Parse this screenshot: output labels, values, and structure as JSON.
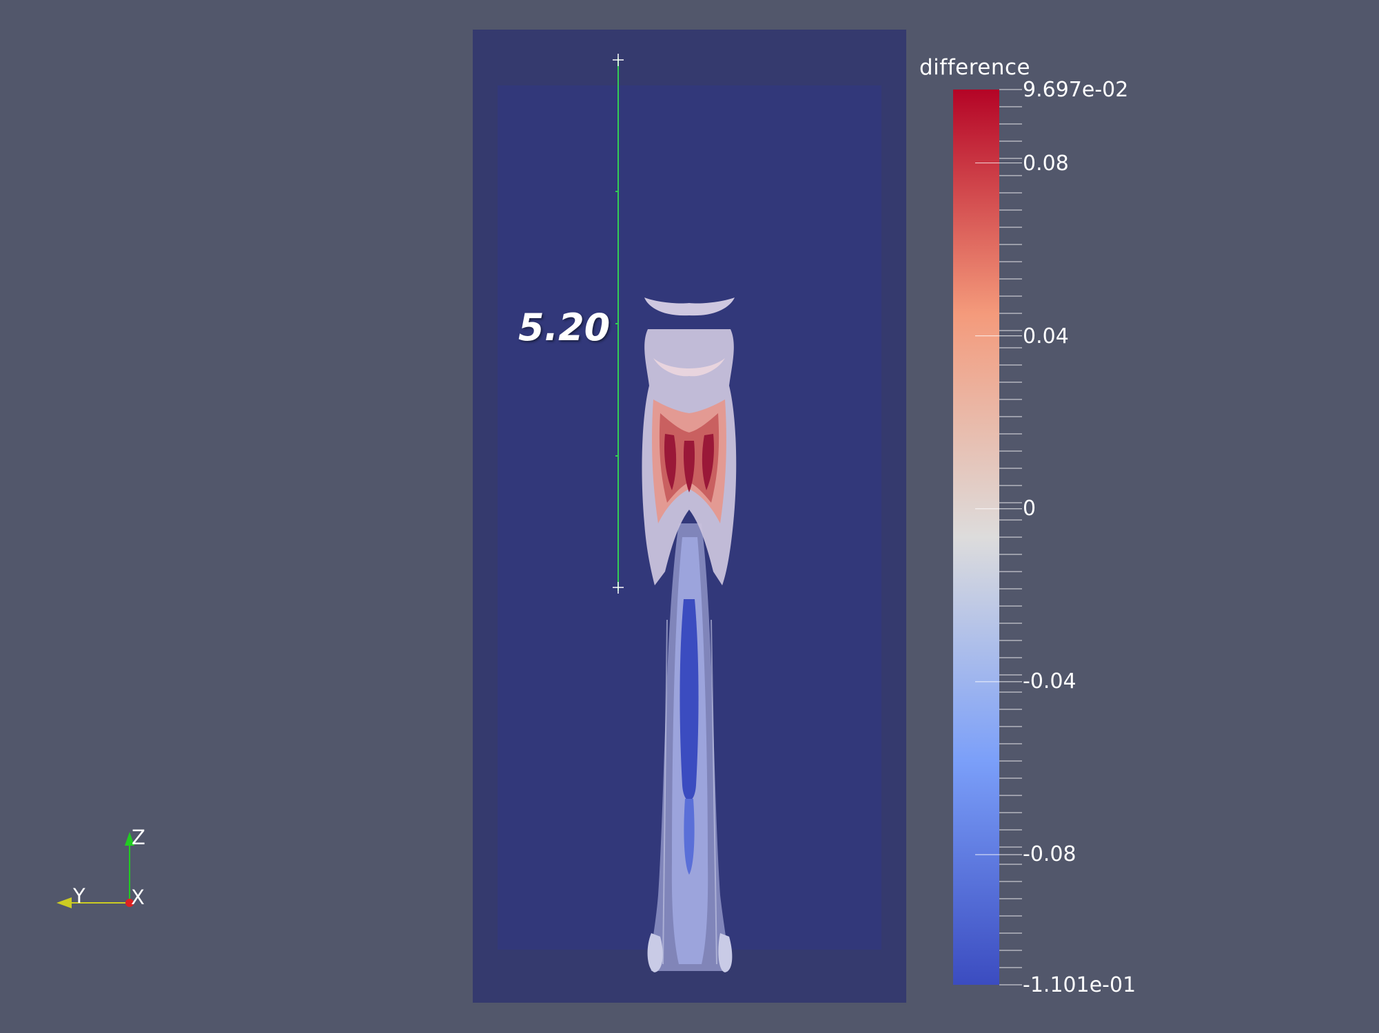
{
  "colorbar": {
    "title": "difference",
    "max_label": "9.697e-02",
    "min_label": "-1.101e-01",
    "max_value": 0.09697,
    "min_value": -0.1101,
    "ticks": [
      {
        "value": 0.08,
        "label": "0.08"
      },
      {
        "value": 0.04,
        "label": "0.04"
      },
      {
        "value": 0,
        "label": "0"
      },
      {
        "value": -0.04,
        "label": "-0.04"
      },
      {
        "value": -0.08,
        "label": "-0.08"
      }
    ],
    "colors": {
      "high": "#b40426",
      "mid": "#dddddd",
      "low": "#3b4cc0"
    }
  },
  "ruler": {
    "label": "5.20",
    "color": "#33cc55"
  },
  "axes": {
    "z_label": "Z",
    "y_label": "Y",
    "x_label": "X"
  },
  "colors": {
    "background": "#52576b",
    "domain_outer": "#353a6e",
    "domain_inner": "#33387a"
  }
}
